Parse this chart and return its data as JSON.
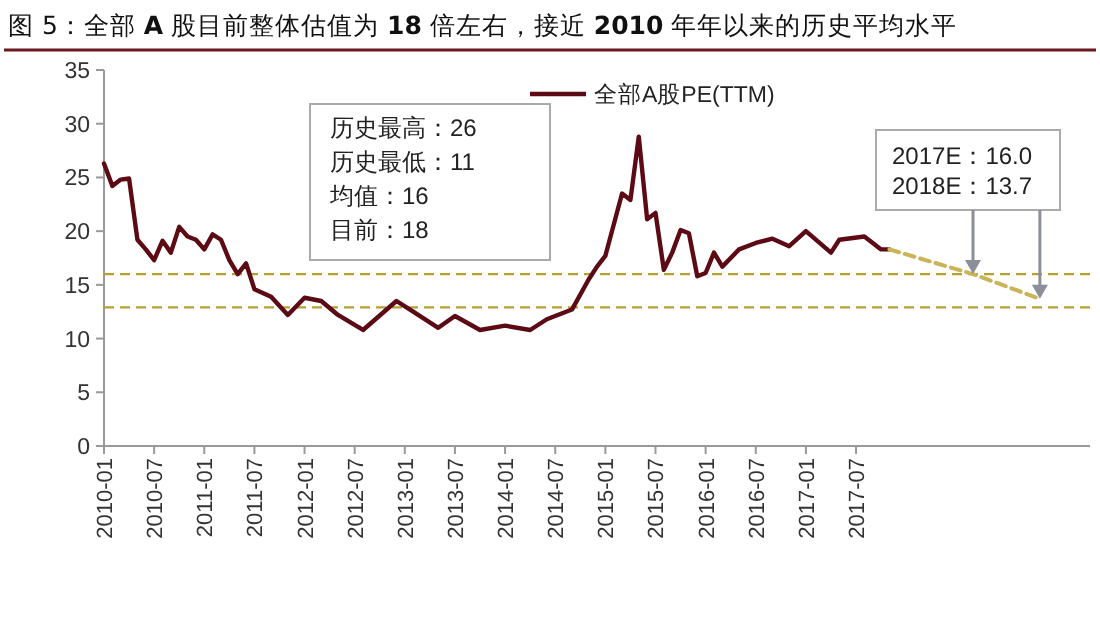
{
  "chart_data": {
    "type": "line",
    "title": "图 5：全部 **A** 股目前整体估值为 **18** 倍左右，接近 **2010** 年年以来的历史平均水平",
    "xlim": [
      "2010-01",
      "2019-11"
    ],
    "ylim": [
      0,
      35
    ],
    "yticks": [
      0,
      5,
      10,
      15,
      20,
      25,
      30,
      35
    ],
    "xticks": [
      {
        "value": "2010-01",
        "label": "2010-01"
      },
      {
        "value": "2010-07",
        "label": "2010-07"
      },
      {
        "value": "2011-01",
        "label": "2011-01"
      },
      {
        "value": "2011-07",
        "label": "2011-07"
      },
      {
        "value": "2012-01",
        "label": "2012-01"
      },
      {
        "value": "2012-07",
        "label": "2012-07"
      },
      {
        "value": "2013-01",
        "label": "2013-01"
      },
      {
        "value": "2013-07",
        "label": "2013-07"
      },
      {
        "value": "2014-01",
        "label": "2014-01"
      },
      {
        "value": "2014-07",
        "label": "2014-07"
      },
      {
        "value": "2015-01",
        "label": "2015-01"
      },
      {
        "value": "2015-07",
        "label": "2015-07"
      },
      {
        "value": "2016-01",
        "label": "2016-01"
      },
      {
        "value": "2016-07",
        "label": "2016-07"
      },
      {
        "value": "2017-01",
        "label": "2017-01"
      },
      {
        "value": "2017-07",
        "label": "2017-07"
      }
    ],
    "grid": false,
    "legend": "top",
    "marker": "none",
    "line_style": "solid",
    "series": [
      {
        "name": "全部A股PE(TTM)",
        "color": "#5c0a14",
        "x": [
          "2010-01",
          "2010-02",
          "2010-03",
          "2010-04",
          "2010-05",
          "2010-06",
          "2010-07",
          "2010-08",
          "2010-09",
          "2010-10",
          "2010-11",
          "2010-12",
          "2011-01",
          "2011-02",
          "2011-03",
          "2011-04",
          "2011-05",
          "2011-06",
          "2011-07",
          "2011-09",
          "2011-11",
          "2012-01",
          "2012-03",
          "2012-05",
          "2012-08",
          "2012-12",
          "2013-02",
          "2013-05",
          "2013-07",
          "2013-10",
          "2014-01",
          "2014-04",
          "2014-06",
          "2014-09",
          "2014-11",
          "2014-12",
          "2015-01",
          "2015-03",
          "2015-04",
          "2015-05",
          "2015-06",
          "2015-07",
          "2015-08",
          "2015-09",
          "2015-10",
          "2015-11",
          "2015-12",
          "2016-01",
          "2016-02",
          "2016-03",
          "2016-05",
          "2016-07",
          "2016-09",
          "2016-11",
          "2017-01",
          "2017-04",
          "2017-05",
          "2017-08",
          "2017-10",
          "2017-11"
        ],
        "values": [
          26.3,
          24.2,
          24.8,
          24.9,
          19.2,
          18.3,
          17.3,
          19.1,
          18.0,
          20.4,
          19.5,
          19.2,
          18.3,
          19.7,
          19.2,
          17.3,
          16.0,
          17.0,
          14.6,
          13.9,
          12.2,
          13.8,
          13.5,
          12.2,
          10.8,
          13.5,
          12.5,
          11.0,
          12.1,
          10.8,
          11.2,
          10.8,
          11.8,
          12.7,
          15.5,
          16.7,
          17.7,
          23.5,
          22.9,
          28.8,
          21.1,
          21.7,
          16.4,
          18.0,
          20.1,
          19.8,
          15.8,
          16.1,
          18.0,
          16.7,
          18.3,
          18.9,
          19.3,
          18.6,
          20.0,
          18.0,
          19.2,
          19.5,
          18.3,
          18.3
        ]
      },
      {
        "type": "line",
        "color": "#c9b458",
        "line_style": "dashed",
        "x": [
          "2017-11",
          "2018-09",
          "2019-05"
        ],
        "values": [
          18.3,
          16.0,
          13.7
        ]
      }
    ],
    "ref_lines": [
      {
        "axis": "y",
        "value": 16,
        "color": "#b8a030",
        "line_style": "dashed"
      },
      {
        "axis": "y",
        "value": 12.9,
        "color": "#b8a030",
        "line_style": "dashed"
      }
    ],
    "annotations": [
      "历史最高：26",
      "历史最低：11",
      "均值：16",
      "目前：18",
      "2017E：16.0",
      "2018E：13.7"
    ]
  }
}
